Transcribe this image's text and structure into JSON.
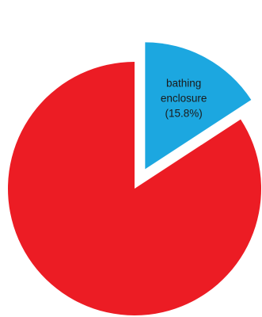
{
  "chart_data": {
    "type": "pie",
    "title": "",
    "slices": [
      {
        "name": "",
        "label": "",
        "percent": 84.2,
        "color": "#ec1c24",
        "exploded": false
      },
      {
        "name": "bathing enclosure",
        "label_lines": [
          "bathing",
          "enclosure",
          "(15.8%)"
        ],
        "percent": 15.8,
        "color": "#1ca7e0",
        "exploded": true
      }
    ],
    "start_angle_deg": 0,
    "direction": "clockwise",
    "legend": "none"
  }
}
